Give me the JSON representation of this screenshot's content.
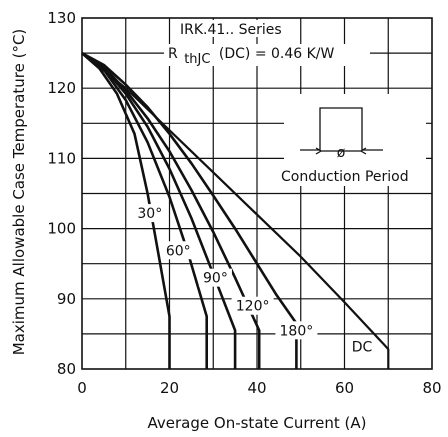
{
  "chart_data": {
    "type": "line",
    "xlabel": "Average On-state Current (A)",
    "ylabel": "Maximum Allowable Case Temperature (°C)",
    "xlim": [
      0,
      80
    ],
    "ylim": [
      80,
      130
    ],
    "xticks": [
      0,
      20,
      40,
      60,
      80
    ],
    "yticks": [
      80,
      90,
      100,
      110,
      120,
      130
    ],
    "grid": true,
    "annotations": {
      "series_title": "IRK.41.. Series",
      "rth_main": "R",
      "rth_sub": "thJC",
      "rth_rest": "(DC) = 0.46 K/W",
      "conduction": "Conduction Period",
      "phi": "ø"
    },
    "series": [
      {
        "name": "30°",
        "points": [
          [
            0,
            125
          ],
          [
            4,
            122.8
          ],
          [
            8,
            119.2
          ],
          [
            12,
            113.5
          ],
          [
            15,
            105
          ],
          [
            17,
            98
          ],
          [
            20,
            87.5
          ],
          [
            20,
            80
          ]
        ]
      },
      {
        "name": "60°",
        "points": [
          [
            0,
            125
          ],
          [
            5,
            122.6
          ],
          [
            10,
            118.3
          ],
          [
            15,
            112.3
          ],
          [
            20,
            104.5
          ],
          [
            24,
            97
          ],
          [
            28.5,
            87.5
          ],
          [
            28.5,
            80
          ]
        ]
      },
      {
        "name": "90°",
        "points": [
          [
            0,
            125
          ],
          [
            5,
            122.9
          ],
          [
            10,
            119.2
          ],
          [
            15,
            114.5
          ],
          [
            20,
            108.5
          ],
          [
            25,
            101.5
          ],
          [
            30,
            93.5
          ],
          [
            35,
            85.5
          ],
          [
            35,
            80
          ]
        ]
      },
      {
        "name": "120°",
        "points": [
          [
            0,
            125
          ],
          [
            5,
            123
          ],
          [
            10,
            119.7
          ],
          [
            15,
            115.7
          ],
          [
            20,
            111
          ],
          [
            25,
            105.5
          ],
          [
            30,
            99.5
          ],
          [
            35,
            93
          ],
          [
            40.5,
            85.5
          ],
          [
            40.5,
            80
          ]
        ]
      },
      {
        "name": "180°",
        "points": [
          [
            0,
            125
          ],
          [
            5,
            123.3
          ],
          [
            10,
            120.5
          ],
          [
            15,
            117.3
          ],
          [
            20,
            113.5
          ],
          [
            25,
            109.3
          ],
          [
            30,
            104.7
          ],
          [
            35,
            100
          ],
          [
            40,
            95
          ],
          [
            44.5,
            90.5
          ],
          [
            49,
            86.5
          ],
          [
            49,
            80
          ]
        ]
      },
      {
        "name": "DC",
        "points": [
          [
            0,
            125
          ],
          [
            10,
            120
          ],
          [
            20,
            114
          ],
          [
            30,
            108
          ],
          [
            40,
            102
          ],
          [
            50,
            96
          ],
          [
            60,
            89.5
          ],
          [
            69,
            83.5
          ],
          [
            70,
            82.8
          ],
          [
            70,
            80
          ]
        ]
      }
    ]
  }
}
